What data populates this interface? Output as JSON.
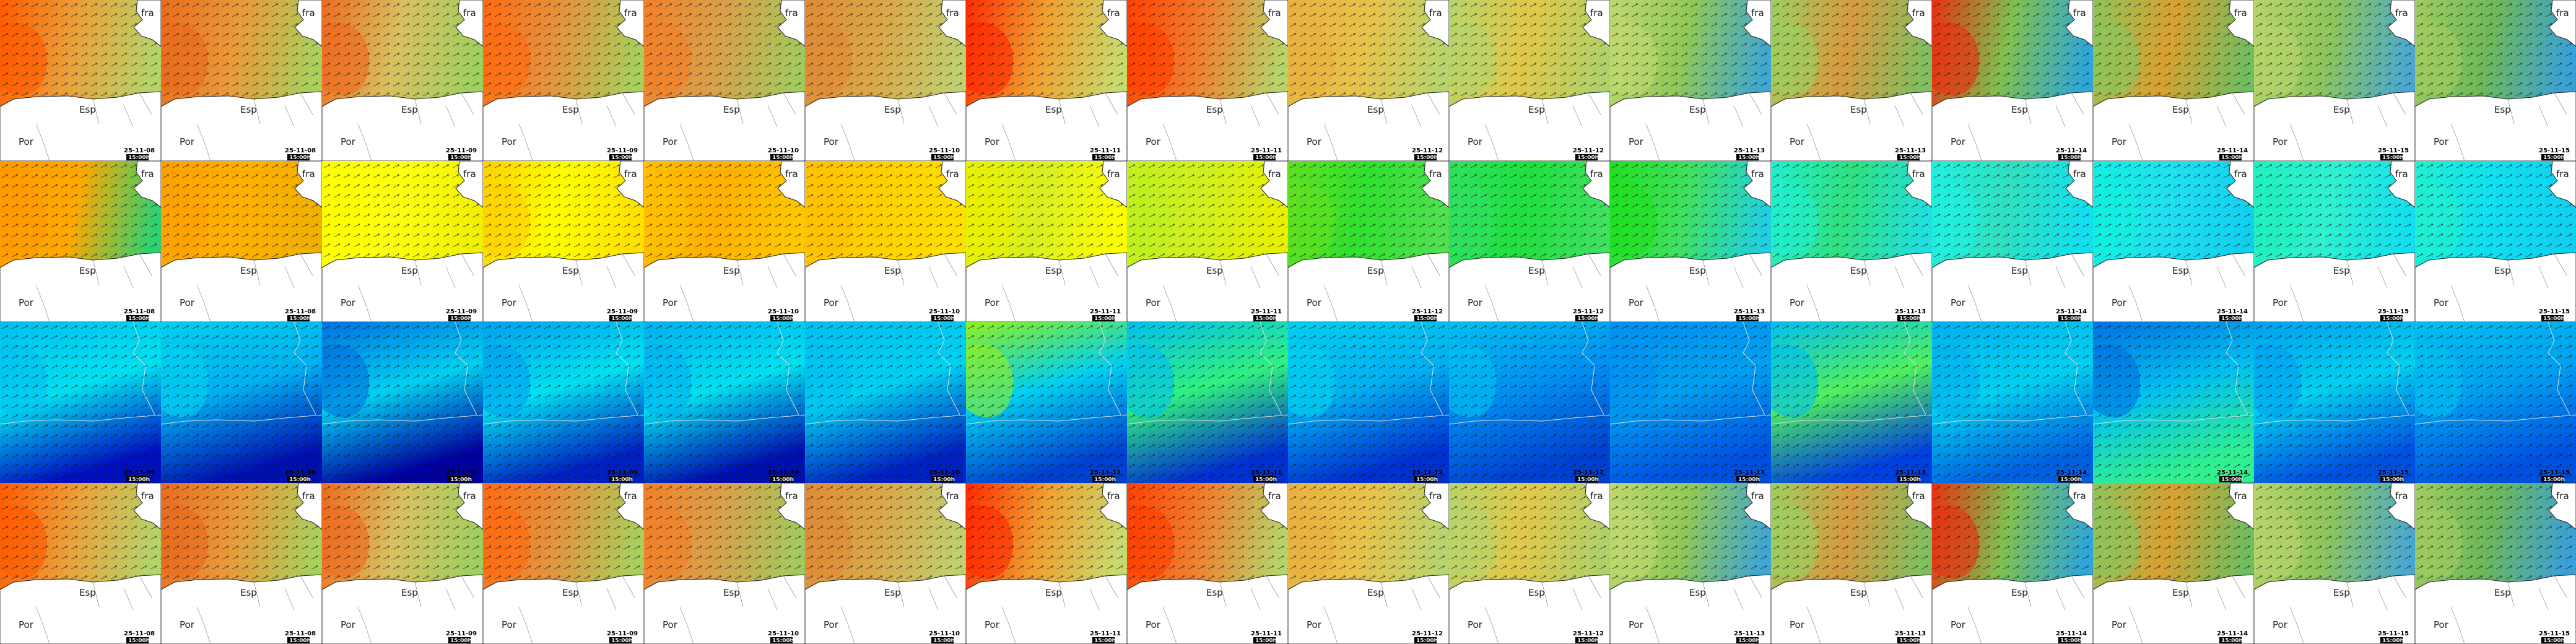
{
  "dates": [
    "25-11-08",
    "25-11-08",
    "25-11-09",
    "25-11-09",
    "25-11-10",
    "25-11-10",
    "25-11-11",
    "25-11-11",
    "25-11-12",
    "25-11-12",
    "25-11-13",
    "25-11-13",
    "25-11-14",
    "25-11-14",
    "25-11-15",
    "25-11-15"
  ],
  "time": "15:00h",
  "countries": {
    "fra": "fra",
    "esp": "Esp",
    "por": "Por"
  },
  "rows": [
    {
      "land": true,
      "colors": [
        [
          "#ff5a00",
          "#e9a23b",
          "#b5d36b"
        ],
        [
          "#e96b1e",
          "#e99a3a",
          "#a9cf5d"
        ],
        [
          "#ef6a1f",
          "#d8c060",
          "#9fcf5f"
        ],
        [
          "#ff6a10",
          "#e39440",
          "#a8cf5c"
        ],
        [
          "#f2802a",
          "#d9a04a",
          "#a3c95e"
        ],
        [
          "#e08a35",
          "#d9a84a",
          "#c0cf70"
        ],
        [
          "#ff2a00",
          "#f0a030",
          "#c8da6e"
        ],
        [
          "#ff4000",
          "#f08030",
          "#b7d46a"
        ],
        [
          "#e8b040",
          "#e8c24a",
          "#b8d46e"
        ],
        [
          "#b8d46a",
          "#e0c84a",
          "#b0d06a"
        ],
        [
          "#c0d870",
          "#90c858",
          "#3fa7d0"
        ],
        [
          "#9dcf5f",
          "#d69a40",
          "#7fbf5f"
        ],
        [
          "#e83010",
          "#80c050",
          "#2ea7d8"
        ],
        [
          "#8cc55c",
          "#d8a030",
          "#6fbe60"
        ],
        [
          "#b8d46a",
          "#8cc55c",
          "#4aa8d0"
        ],
        [
          "#a0cc60",
          "#6db85a",
          "#3aa0d8"
        ]
      ]
    },
    {
      "land": true,
      "colors": [
        [
          "#ff9a00",
          "#ffa800",
          "#30d070"
        ],
        [
          "#ffa000",
          "#ffb000",
          "#f0b000"
        ],
        [
          "#ffff00",
          "#ffff10",
          "#f0f000"
        ],
        [
          "#ffd000",
          "#ffff00",
          "#ffe000"
        ],
        [
          "#ffc000",
          "#ffb000",
          "#ffc800"
        ],
        [
          "#ffc000",
          "#ffd000",
          "#ffe000"
        ],
        [
          "#e8f000",
          "#d8f020",
          "#ffff00"
        ],
        [
          "#c0f020",
          "#d0f020",
          "#e8f000"
        ],
        [
          "#60e020",
          "#30e030",
          "#50e050"
        ],
        [
          "#30e060",
          "#20e040",
          "#40e060"
        ],
        [
          "#20e020",
          "#40e060",
          "#20d0e0"
        ],
        [
          "#20f0d0",
          "#30e080",
          "#20e0e0"
        ],
        [
          "#20f0e0",
          "#30e0c0",
          "#10e0f0"
        ],
        [
          "#10f0e0",
          "#20e0f0",
          "#10d0f0"
        ],
        [
          "#20f0c0",
          "#30f0d0",
          "#10e0f0"
        ],
        [
          "#20f0d0",
          "#10e0f0",
          "#10d0f0"
        ]
      ]
    },
    {
      "land": false,
      "colors": [
        [
          "#00c0f0",
          "#00e0f0",
          "#0010c0"
        ],
        [
          "#00d0f0",
          "#00b0f0",
          "#0010b0"
        ],
        [
          "#0070e0",
          "#00d0f0",
          "#0000a0"
        ],
        [
          "#00a0f0",
          "#00e0f0",
          "#0020c0"
        ],
        [
          "#00b0f0",
          "#00e0f0",
          "#0010b0"
        ],
        [
          "#00c0f0",
          "#00d0f0",
          "#0020c0"
        ],
        [
          "#90f020",
          "#00d0f0",
          "#0040d0"
        ],
        [
          "#00c0f0",
          "#30f080",
          "#0030d0"
        ],
        [
          "#00d0f0",
          "#00b0f0",
          "#0030d0"
        ],
        [
          "#00c0f0",
          "#0090f0",
          "#0040d0"
        ],
        [
          "#0090f0",
          "#00a0f0",
          "#0050e0"
        ],
        [
          "#00c0f0",
          "#50f060",
          "#0040e0"
        ],
        [
          "#00b0f0",
          "#00d0f0",
          "#0060e0"
        ],
        [
          "#0070e0",
          "#00c0f0",
          "#30f090"
        ],
        [
          "#00a0f0",
          "#00d0f0",
          "#0050e0"
        ],
        [
          "#00c0f0",
          "#00a0f0",
          "#0050e0"
        ]
      ]
    },
    {
      "land": true,
      "colors": [
        [
          "#ff5a00",
          "#e9a23b",
          "#b5d36b"
        ],
        [
          "#e96b1e",
          "#e99a3a",
          "#a9cf5d"
        ],
        [
          "#ef6a1f",
          "#d8c060",
          "#9fcf5f"
        ],
        [
          "#ff6a10",
          "#e39440",
          "#a8cf5c"
        ],
        [
          "#f2802a",
          "#d9a04a",
          "#a3c95e"
        ],
        [
          "#e08a35",
          "#d9a84a",
          "#c0cf70"
        ],
        [
          "#ff2a00",
          "#f0a030",
          "#c8da6e"
        ],
        [
          "#ff4000",
          "#f08030",
          "#b7d46a"
        ],
        [
          "#e8b040",
          "#e8c24a",
          "#b8d46e"
        ],
        [
          "#b8d46a",
          "#e0c84a",
          "#b0d06a"
        ],
        [
          "#c0d870",
          "#90c858",
          "#3fa7d0"
        ],
        [
          "#9dcf5f",
          "#d69a40",
          "#7fbf5f"
        ],
        [
          "#e83010",
          "#80c050",
          "#2ea7d8"
        ],
        [
          "#8cc55c",
          "#d8a030",
          "#6fbe60"
        ],
        [
          "#b8d46a",
          "#8cc55c",
          "#4aa8d0"
        ],
        [
          "#a0cc60",
          "#6db85a",
          "#3aa0d8"
        ]
      ]
    }
  ]
}
